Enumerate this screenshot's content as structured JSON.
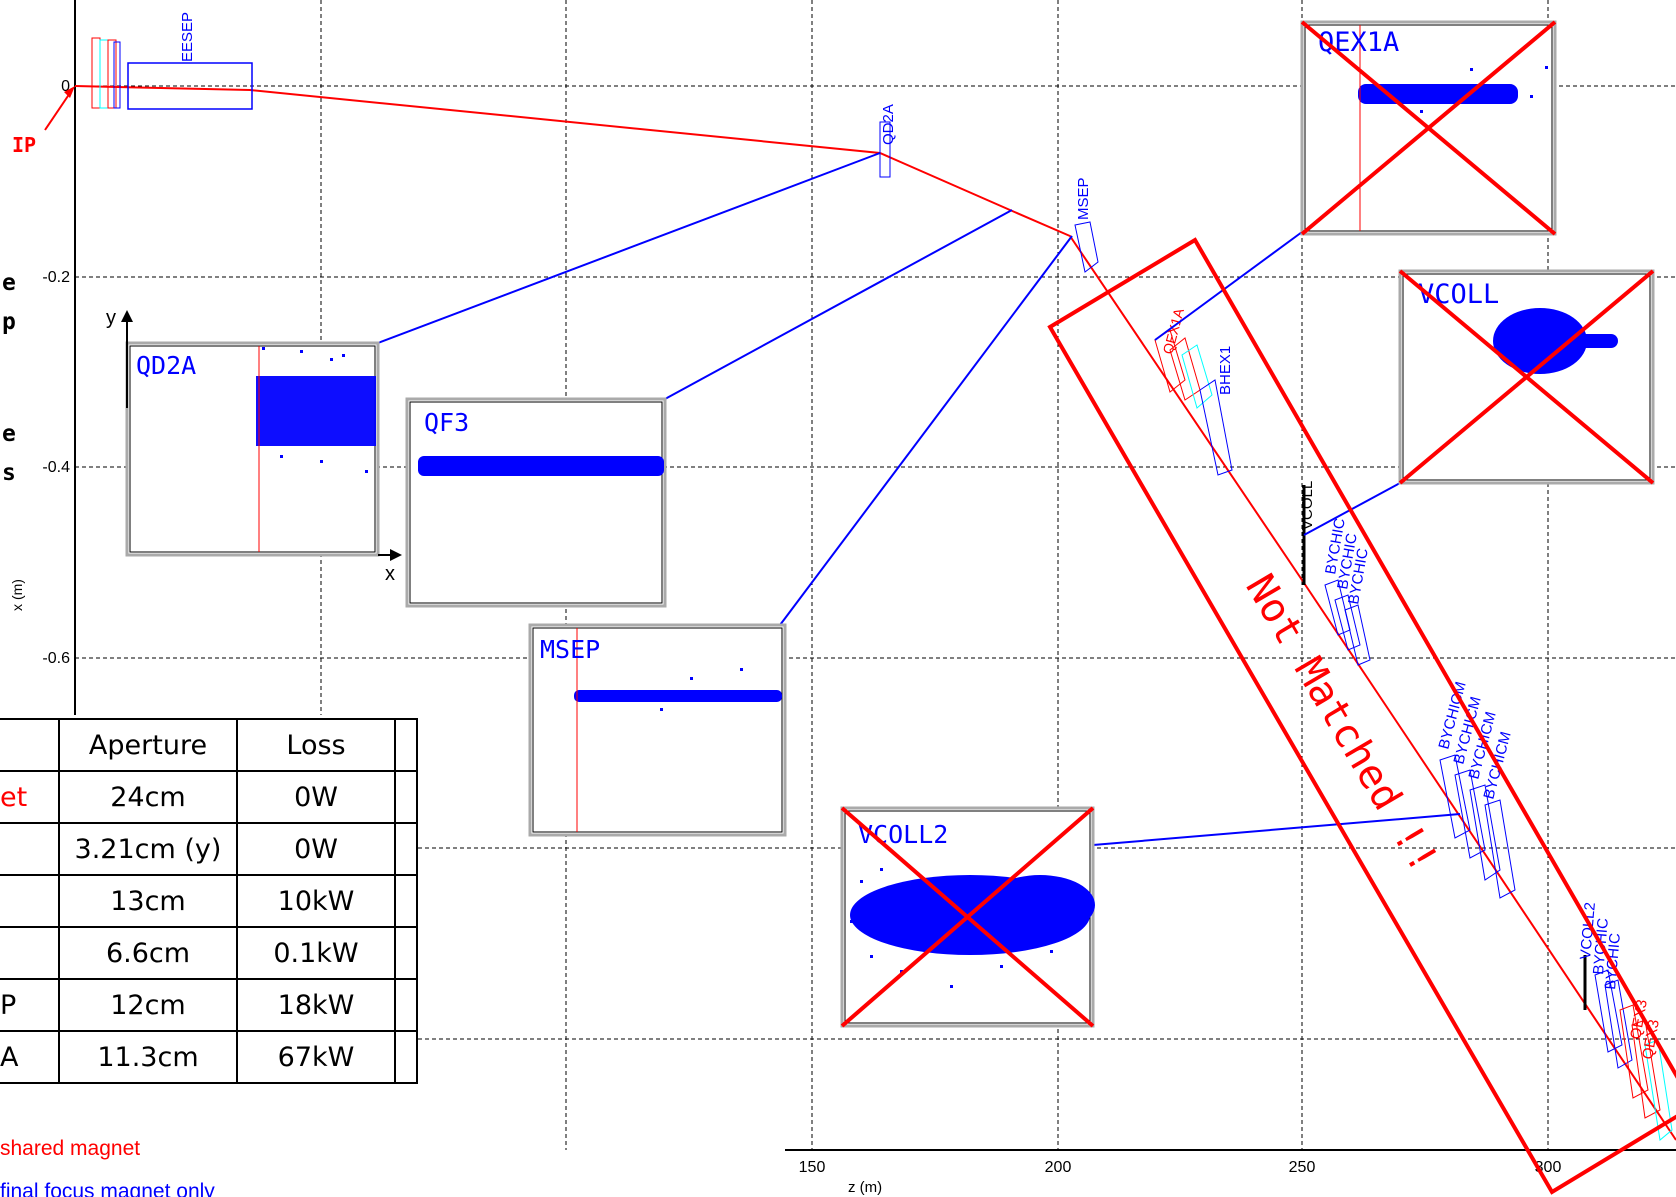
{
  "axes": {
    "x_label": "z (m)",
    "y_label": "x (m)",
    "x_ticks": [
      "150",
      "200",
      "250",
      "300"
    ],
    "y_ticks": [
      "0",
      "-0.2",
      "-0.4",
      "-0.6"
    ]
  },
  "markers": {
    "ip": "IP",
    "element_labels": [
      "EESEP",
      "QD2A",
      "MSEP",
      "QEX1A",
      "BHEX1",
      "VCOLL",
      "BYCHIC",
      "BYCHIC",
      "BYCHIC",
      "BYCHIC",
      "BYCHICM",
      "BYCHICM",
      "BYCHICM",
      "BYCHICM",
      "BYCHICM",
      "BYCHICM",
      "VCOLL2",
      "BYCHIC",
      "BYCHIC",
      "QEX3",
      "QEX3"
    ]
  },
  "insets": [
    {
      "label": "QD2A",
      "crossed": false
    },
    {
      "label": "QF3",
      "crossed": false
    },
    {
      "label": "MSEP",
      "crossed": false
    },
    {
      "label": "VCOLL2",
      "crossed": true
    },
    {
      "label": "QEX1A",
      "crossed": true
    },
    {
      "label": "VCOLL",
      "crossed": true
    }
  ],
  "inset_axes": {
    "x": "x",
    "y": "y"
  },
  "stamp": "Not Matched !!",
  "left_notes": [
    "e",
    "p",
    "e",
    "s"
  ],
  "table": {
    "headers": [
      "",
      "Aperture",
      "Loss"
    ],
    "rows": [
      {
        "name": "et",
        "aperture": "24cm",
        "loss": "0W"
      },
      {
        "name": "",
        "aperture": "3.21cm (y)",
        "loss": "0W"
      },
      {
        "name": "",
        "aperture": "13cm",
        "loss": "10kW"
      },
      {
        "name": "",
        "aperture": "6.6cm",
        "loss": "0.1kW"
      },
      {
        "name": "P",
        "aperture": "12cm",
        "loss": "18kW"
      },
      {
        "name": "A",
        "aperture": "11.3cm",
        "loss": "67kW"
      }
    ]
  },
  "legend": {
    "shared": "shared magnet",
    "final_focus": "final focus magnet only"
  },
  "colors": {
    "beam": "#ff0000",
    "elements": "#0000ff",
    "cyan": "#00ffff",
    "stamp": "#ff0000",
    "points": "#0000ff"
  }
}
